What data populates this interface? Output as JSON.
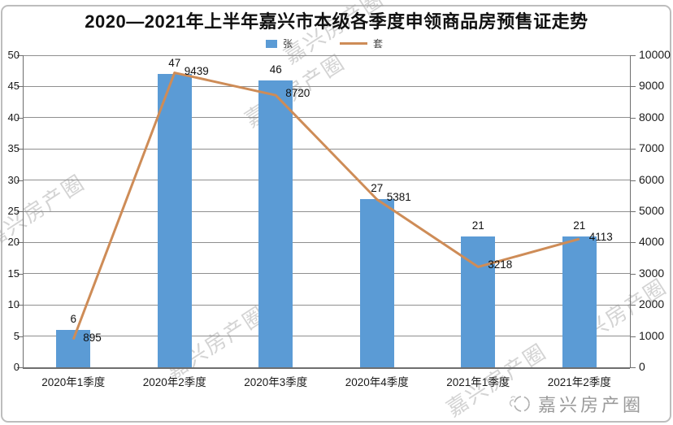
{
  "title": "2020—2021年上半年嘉兴市本级各季度申领商品房预售证走势",
  "legend": {
    "bar_label": "张",
    "line_label": "套"
  },
  "watermark": {
    "text": "嘉兴房产圈"
  },
  "logo": {
    "text": "嘉兴房产圈"
  },
  "colors": {
    "bar": "#5B9BD5",
    "line": "#CE8C57",
    "grid": "#8f8f8f",
    "watermark": "#a8a8a8",
    "logo_text": "#9a9a9a"
  },
  "chart_data": {
    "type": "bar+line",
    "title": "2020—2021年上半年嘉兴市本级各季度申领商品房预售证走势",
    "categories": [
      "2020年1季度",
      "2020年2季度",
      "2020年3季度",
      "2020年4季度",
      "2021年1季度",
      "2021年2季度"
    ],
    "series": [
      {
        "name": "张",
        "type": "bar",
        "axis": "left",
        "values": [
          6,
          47,
          46,
          27,
          21,
          21
        ]
      },
      {
        "name": "套",
        "type": "line",
        "axis": "right",
        "values": [
          895,
          9439,
          8720,
          5381,
          3218,
          4113
        ]
      }
    ],
    "left_axis": {
      "min": 0,
      "max": 50,
      "step": 5
    },
    "right_axis": {
      "min": 0,
      "max": 10000,
      "step": 1000
    },
    "grid": true,
    "legend_position": "top",
    "data_labels": true
  }
}
